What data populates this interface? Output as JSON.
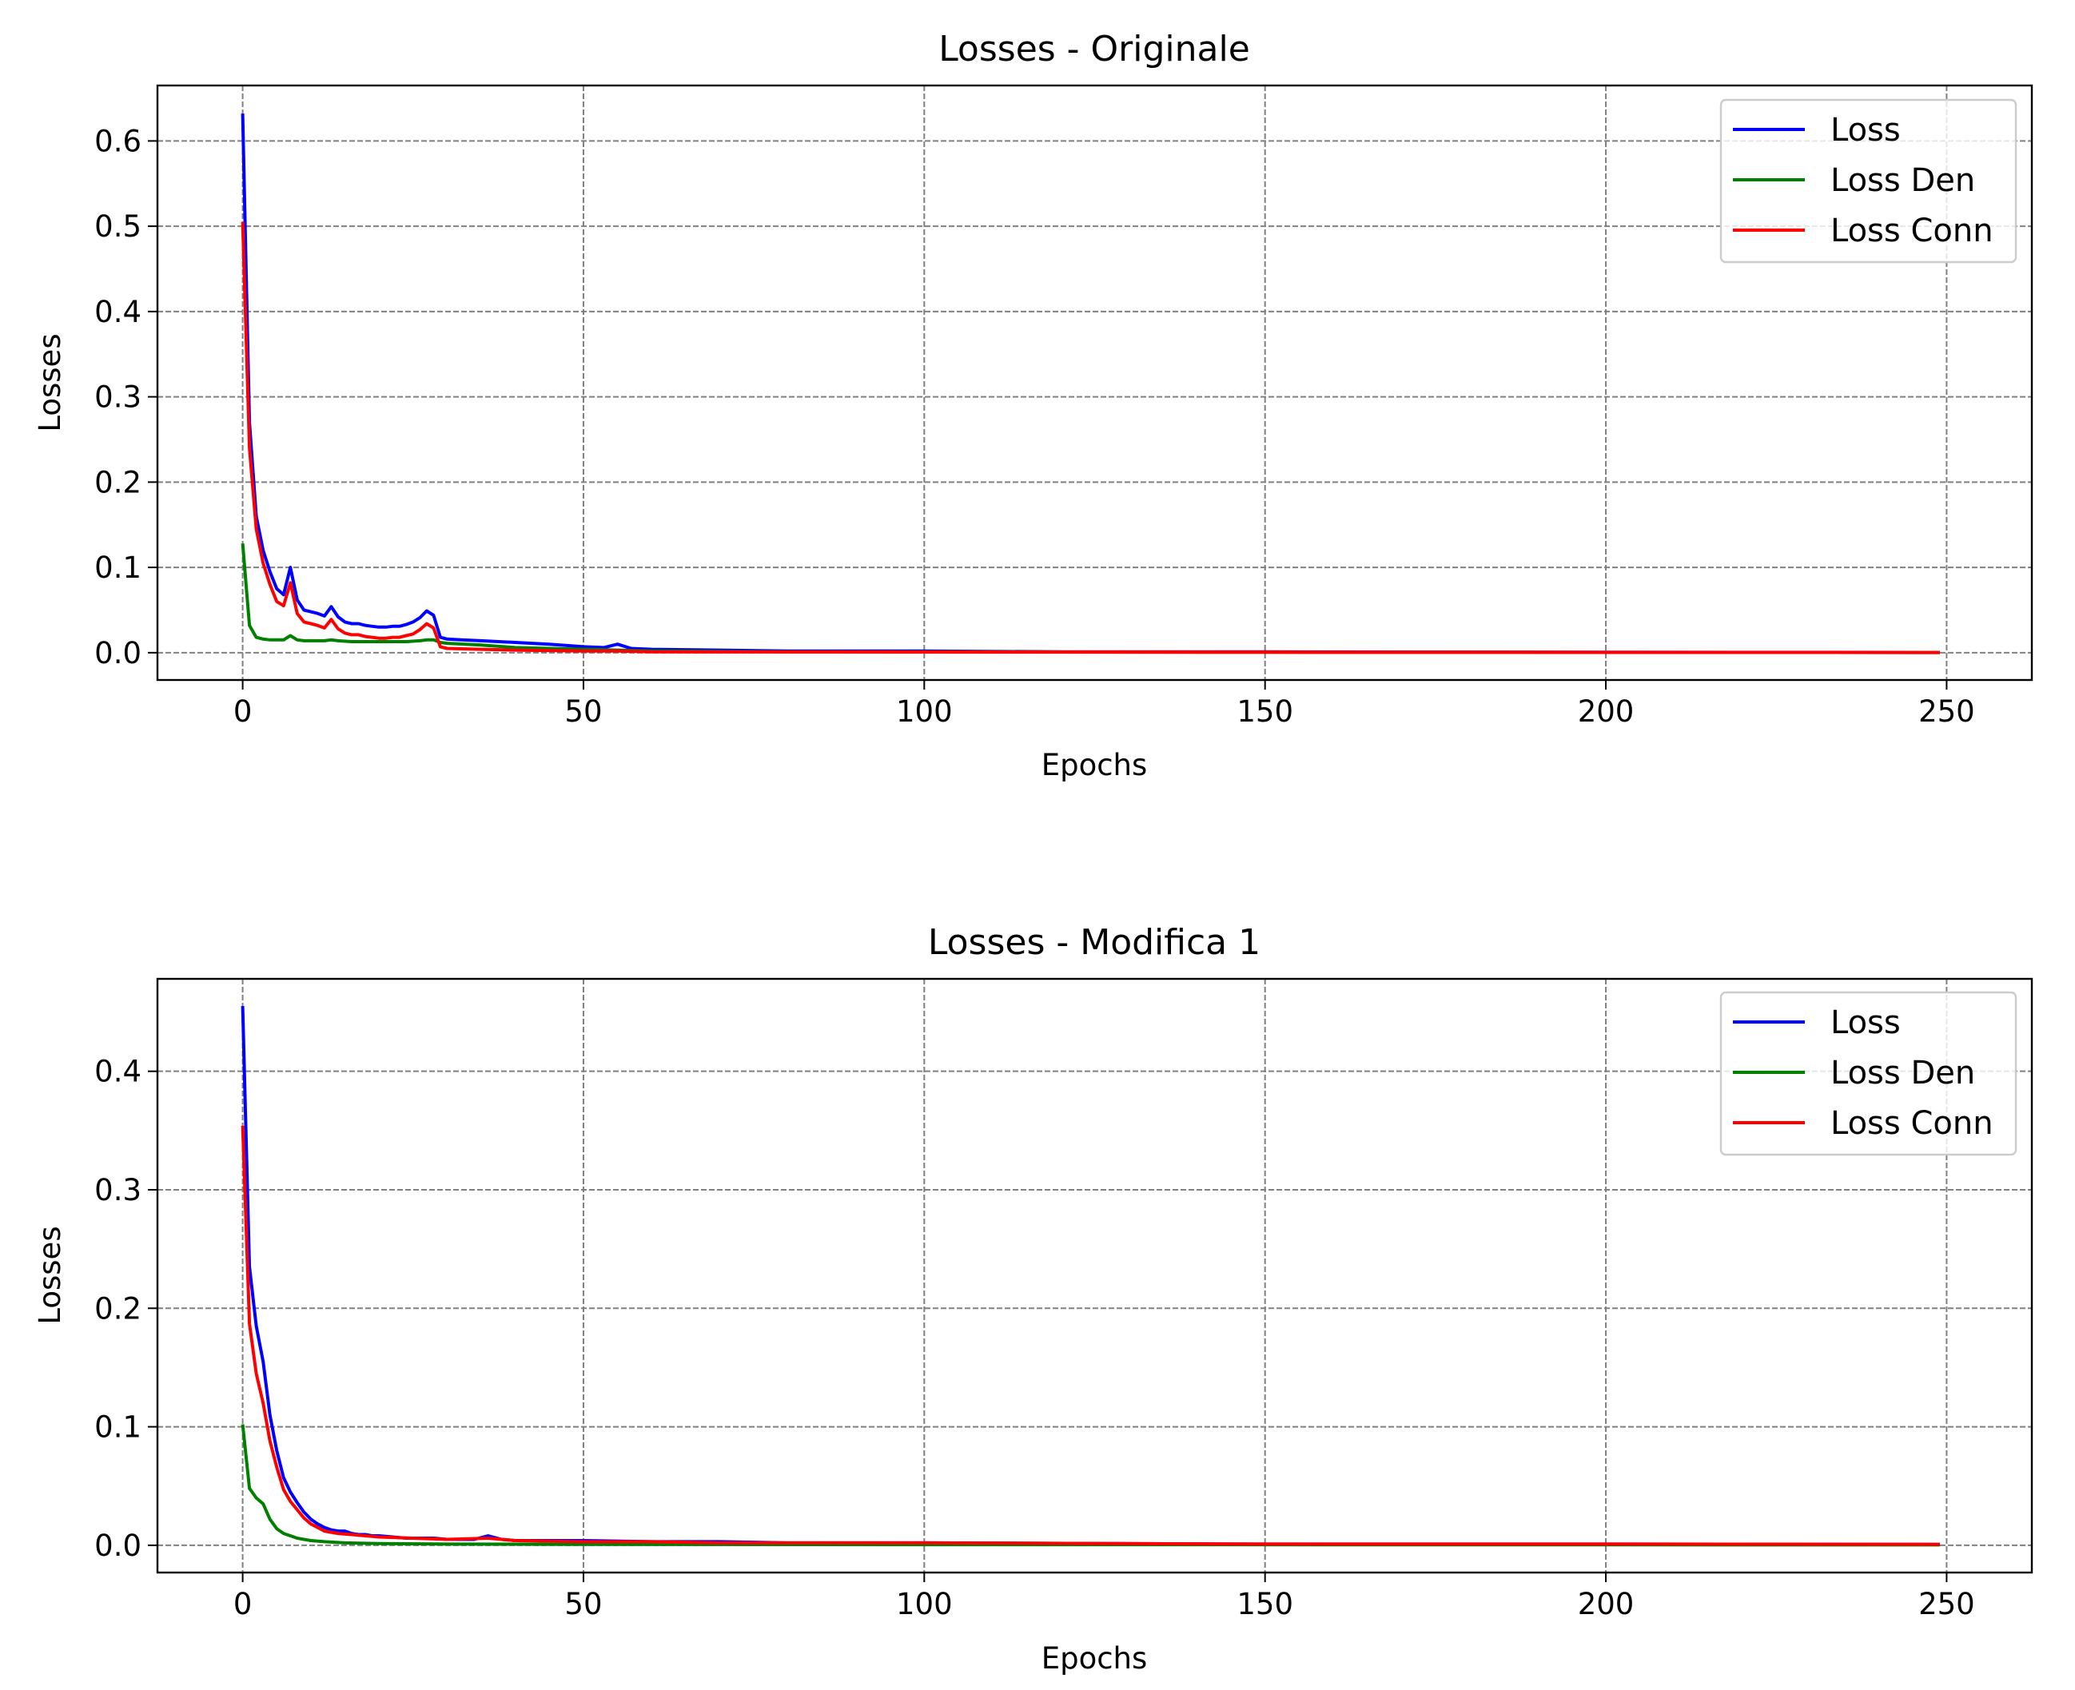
{
  "chart_data": [
    {
      "type": "line",
      "title": "Losses - Originale",
      "xlabel": "Epochs",
      "ylabel": "Losses",
      "xlim": [
        -12.5,
        262.5
      ],
      "ylim": [
        -0.032,
        0.665
      ],
      "xticks": [
        0,
        50,
        100,
        150,
        200,
        250
      ],
      "xtick_labels": [
        "0",
        "50",
        "100",
        "150",
        "200",
        "250"
      ],
      "yticks": [
        0.0,
        0.1,
        0.2,
        0.3,
        0.4,
        0.5,
        0.6
      ],
      "ytick_labels": [
        "0.0",
        "0.1",
        "0.2",
        "0.3",
        "0.4",
        "0.5",
        "0.6"
      ],
      "grid": true,
      "legend_position": "top-right",
      "series": [
        {
          "name": "Loss",
          "color": "#0000ff",
          "points": [
            [
              0,
              0.632
            ],
            [
              1,
              0.27
            ],
            [
              2,
              0.16
            ],
            [
              3,
              0.12
            ],
            [
              4,
              0.095
            ],
            [
              5,
              0.075
            ],
            [
              6,
              0.068
            ],
            [
              7,
              0.1
            ],
            [
              8,
              0.062
            ],
            [
              9,
              0.05
            ],
            [
              10,
              0.048
            ],
            [
              11,
              0.046
            ],
            [
              12,
              0.043
            ],
            [
              13,
              0.054
            ],
            [
              14,
              0.042
            ],
            [
              15,
              0.036
            ],
            [
              16,
              0.034
            ],
            [
              17,
              0.034
            ],
            [
              18,
              0.032
            ],
            [
              19,
              0.031
            ],
            [
              20,
              0.03
            ],
            [
              21,
              0.03
            ],
            [
              22,
              0.031
            ],
            [
              23,
              0.031
            ],
            [
              24,
              0.033
            ],
            [
              25,
              0.036
            ],
            [
              26,
              0.041
            ],
            [
              27,
              0.049
            ],
            [
              28,
              0.044
            ],
            [
              29,
              0.018
            ],
            [
              30,
              0.016
            ],
            [
              32,
              0.015
            ],
            [
              35,
              0.014
            ],
            [
              40,
              0.012
            ],
            [
              45,
              0.01
            ],
            [
              50,
              0.007
            ],
            [
              53,
              0.006
            ],
            [
              55,
              0.01
            ],
            [
              57,
              0.005
            ],
            [
              60,
              0.004
            ],
            [
              70,
              0.003
            ],
            [
              80,
              0.002
            ],
            [
              100,
              0.002
            ],
            [
              120,
              0.001
            ],
            [
              150,
              0.001
            ],
            [
              200,
              0.0005
            ],
            [
              249,
              0.0003
            ]
          ]
        },
        {
          "name": "Loss Den",
          "color": "#008000",
          "points": [
            [
              0,
              0.128
            ],
            [
              1,
              0.032
            ],
            [
              2,
              0.018
            ],
            [
              3,
              0.016
            ],
            [
              4,
              0.015
            ],
            [
              5,
              0.015
            ],
            [
              6,
              0.015
            ],
            [
              7,
              0.02
            ],
            [
              8,
              0.015
            ],
            [
              9,
              0.014
            ],
            [
              10,
              0.014
            ],
            [
              12,
              0.014
            ],
            [
              13,
              0.015
            ],
            [
              14,
              0.014
            ],
            [
              16,
              0.013
            ],
            [
              20,
              0.013
            ],
            [
              24,
              0.013
            ],
            [
              26,
              0.014
            ],
            [
              27,
              0.015
            ],
            [
              28,
              0.015
            ],
            [
              29,
              0.012
            ],
            [
              30,
              0.011
            ],
            [
              35,
              0.009
            ],
            [
              40,
              0.006
            ],
            [
              45,
              0.005
            ],
            [
              50,
              0.004
            ],
            [
              55,
              0.003
            ],
            [
              60,
              0.002
            ],
            [
              80,
              0.001
            ],
            [
              100,
              0.001
            ],
            [
              150,
              0.0005
            ],
            [
              249,
              0.0002
            ]
          ]
        },
        {
          "name": "Loss Conn",
          "color": "#ff0000",
          "points": [
            [
              0,
              0.505
            ],
            [
              1,
              0.24
            ],
            [
              2,
              0.145
            ],
            [
              3,
              0.105
            ],
            [
              4,
              0.08
            ],
            [
              5,
              0.06
            ],
            [
              6,
              0.055
            ],
            [
              7,
              0.082
            ],
            [
              8,
              0.046
            ],
            [
              9,
              0.036
            ],
            [
              10,
              0.034
            ],
            [
              11,
              0.032
            ],
            [
              12,
              0.029
            ],
            [
              13,
              0.039
            ],
            [
              14,
              0.028
            ],
            [
              15,
              0.023
            ],
            [
              16,
              0.021
            ],
            [
              17,
              0.021
            ],
            [
              18,
              0.019
            ],
            [
              19,
              0.018
            ],
            [
              20,
              0.017
            ],
            [
              21,
              0.017
            ],
            [
              22,
              0.018
            ],
            [
              23,
              0.018
            ],
            [
              24,
              0.02
            ],
            [
              25,
              0.022
            ],
            [
              26,
              0.027
            ],
            [
              27,
              0.034
            ],
            [
              28,
              0.029
            ],
            [
              29,
              0.007
            ],
            [
              30,
              0.005
            ],
            [
              35,
              0.004
            ],
            [
              40,
              0.003
            ],
            [
              50,
              0.002
            ],
            [
              55,
              0.002
            ],
            [
              60,
              0.001
            ],
            [
              100,
              0.0008
            ],
            [
              150,
              0.0005
            ],
            [
              249,
              0.0002
            ]
          ]
        }
      ]
    },
    {
      "type": "line",
      "title": "Losses - Modifica 1",
      "xlabel": "Epochs",
      "ylabel": "Losses",
      "xlim": [
        -12.5,
        262.5
      ],
      "ylim": [
        -0.023,
        0.478
      ],
      "xticks": [
        0,
        50,
        100,
        150,
        200,
        250
      ],
      "xtick_labels": [
        "0",
        "50",
        "100",
        "150",
        "200",
        "250"
      ],
      "yticks": [
        0.0,
        0.1,
        0.2,
        0.3,
        0.4
      ],
      "ytick_labels": [
        "0.0",
        "0.1",
        "0.2",
        "0.3",
        "0.4"
      ],
      "grid": true,
      "legend_position": "top-right",
      "series": [
        {
          "name": "Loss",
          "color": "#0000ff",
          "points": [
            [
              0,
              0.455
            ],
            [
              1,
              0.235
            ],
            [
              2,
              0.185
            ],
            [
              3,
              0.155
            ],
            [
              4,
              0.11
            ],
            [
              5,
              0.08
            ],
            [
              6,
              0.057
            ],
            [
              7,
              0.045
            ],
            [
              8,
              0.036
            ],
            [
              9,
              0.028
            ],
            [
              10,
              0.022
            ],
            [
              11,
              0.018
            ],
            [
              12,
              0.015
            ],
            [
              13,
              0.013
            ],
            [
              14,
              0.012
            ],
            [
              15,
              0.012
            ],
            [
              16,
              0.01
            ],
            [
              17,
              0.009
            ],
            [
              18,
              0.009
            ],
            [
              19,
              0.008
            ],
            [
              20,
              0.008
            ],
            [
              22,
              0.007
            ],
            [
              24,
              0.006
            ],
            [
              26,
              0.006
            ],
            [
              28,
              0.006
            ],
            [
              30,
              0.005
            ],
            [
              34,
              0.005
            ],
            [
              36,
              0.008
            ],
            [
              38,
              0.005
            ],
            [
              40,
              0.004
            ],
            [
              45,
              0.004
            ],
            [
              50,
              0.004
            ],
            [
              60,
              0.003
            ],
            [
              70,
              0.003
            ],
            [
              80,
              0.002
            ],
            [
              100,
              0.002
            ],
            [
              150,
              0.001
            ],
            [
              200,
              0.001
            ],
            [
              249,
              0.0008
            ]
          ]
        },
        {
          "name": "Loss Den",
          "color": "#008000",
          "points": [
            [
              0,
              0.102
            ],
            [
              1,
              0.048
            ],
            [
              2,
              0.04
            ],
            [
              3,
              0.035
            ],
            [
              4,
              0.022
            ],
            [
              5,
              0.014
            ],
            [
              6,
              0.01
            ],
            [
              7,
              0.008
            ],
            [
              8,
              0.006
            ],
            [
              9,
              0.005
            ],
            [
              10,
              0.004
            ],
            [
              12,
              0.003
            ],
            [
              15,
              0.002
            ],
            [
              20,
              0.0015
            ],
            [
              30,
              0.001
            ],
            [
              50,
              0.0008
            ],
            [
              100,
              0.0005
            ],
            [
              249,
              0.0003
            ]
          ]
        },
        {
          "name": "Loss Conn",
          "color": "#ff0000",
          "points": [
            [
              0,
              0.354
            ],
            [
              1,
              0.187
            ],
            [
              2,
              0.145
            ],
            [
              3,
              0.12
            ],
            [
              4,
              0.088
            ],
            [
              5,
              0.066
            ],
            [
              6,
              0.047
            ],
            [
              7,
              0.037
            ],
            [
              8,
              0.03
            ],
            [
              9,
              0.023
            ],
            [
              10,
              0.018
            ],
            [
              11,
              0.015
            ],
            [
              12,
              0.012
            ],
            [
              13,
              0.011
            ],
            [
              14,
              0.01
            ],
            [
              16,
              0.009
            ],
            [
              18,
              0.008
            ],
            [
              20,
              0.007
            ],
            [
              25,
              0.006
            ],
            [
              30,
              0.005
            ],
            [
              36,
              0.006
            ],
            [
              40,
              0.004
            ],
            [
              50,
              0.003
            ],
            [
              60,
              0.003
            ],
            [
              70,
              0.002
            ],
            [
              100,
              0.002
            ],
            [
              150,
              0.001
            ],
            [
              200,
              0.001
            ],
            [
              249,
              0.0008
            ]
          ]
        }
      ]
    }
  ]
}
